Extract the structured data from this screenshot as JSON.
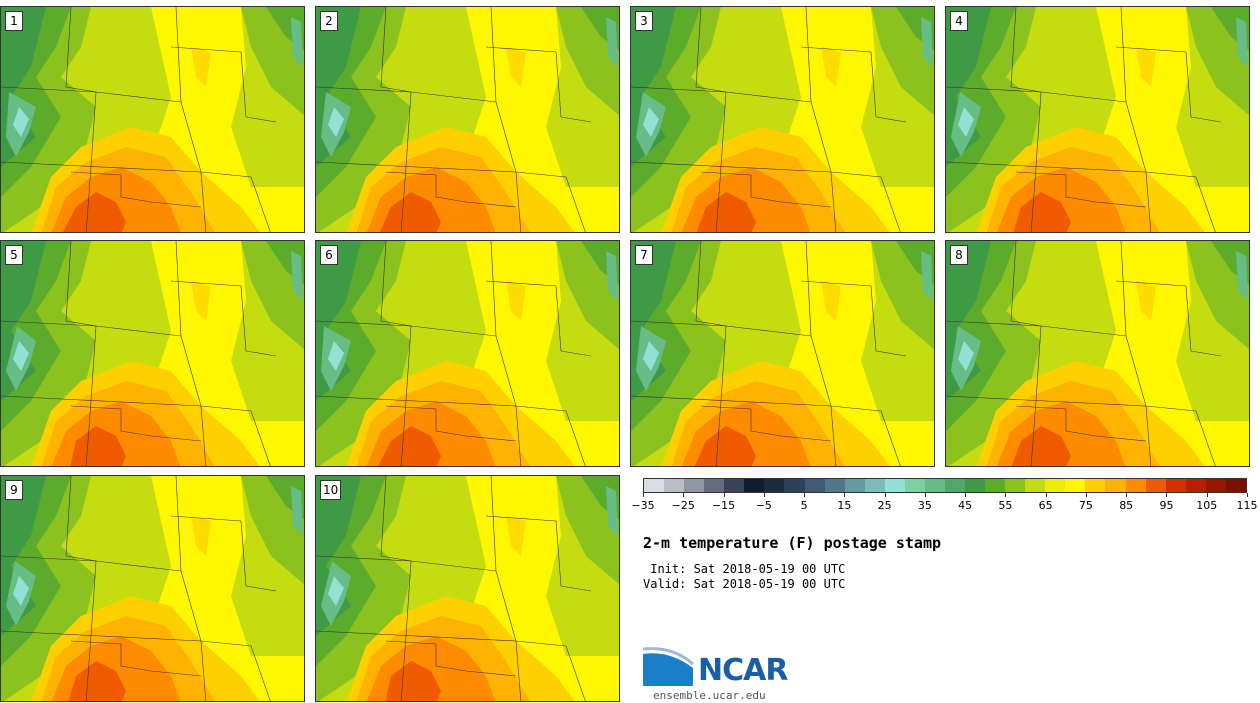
{
  "members": [
    {
      "label": "1"
    },
    {
      "label": "2"
    },
    {
      "label": "3"
    },
    {
      "label": "4"
    },
    {
      "label": "5"
    },
    {
      "label": "6"
    },
    {
      "label": "7"
    },
    {
      "label": "8"
    },
    {
      "label": "9"
    },
    {
      "label": "10"
    }
  ],
  "colorbar": {
    "colors": [
      "#d8dde3",
      "#b9bec6",
      "#8f97a4",
      "#646c7d",
      "#3c4257",
      "#101c30",
      "#1c2c3f",
      "#2d4259",
      "#3f5a72",
      "#50778a",
      "#649ba3",
      "#7bbcb8",
      "#94e0d4",
      "#7fcfa5",
      "#66bd86",
      "#4fa865",
      "#3f9a45",
      "#5cab2b",
      "#8cc21d",
      "#c4dc10",
      "#ecee08",
      "#fff700",
      "#ffd000",
      "#ffb300",
      "#ff8c00",
      "#f05a00",
      "#d43000",
      "#b81e00",
      "#981500",
      "#7a1000"
    ],
    "tick_labels": [
      "−35",
      "−25",
      "−15",
      "−5",
      "5",
      "15",
      "25",
      "35",
      "45",
      "55",
      "65",
      "75",
      "85",
      "95",
      "105",
      "115"
    ]
  },
  "title": "2-m temperature (F) postage stamp",
  "init": " Init: Sat 2018-05-19 00 UTC",
  "valid": "Valid: Sat 2018-05-19 00 UTC",
  "logo": {
    "text": "NCAR",
    "site": "ensemble.ucar.edu",
    "color": "#1a5ea8"
  }
}
